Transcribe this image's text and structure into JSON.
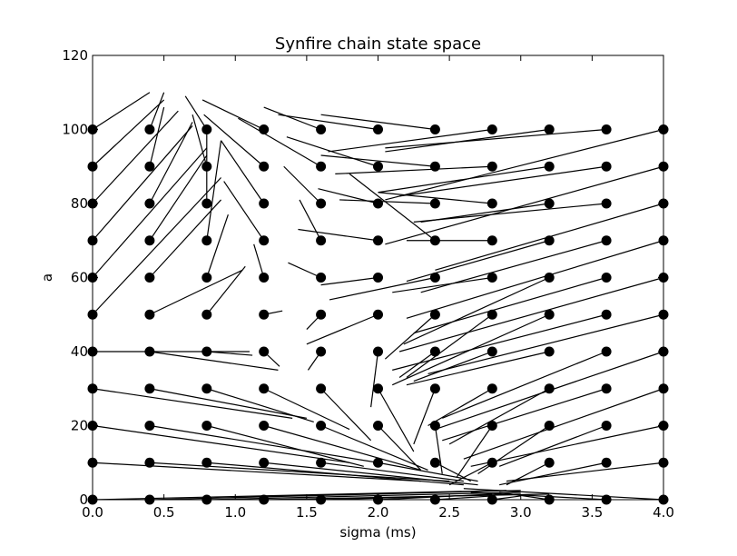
{
  "chart_data": {
    "type": "scatter",
    "title": "Synfire chain state space",
    "xlabel": "sigma (ms)",
    "ylabel": "a",
    "xlim": [
      0.0,
      4.0
    ],
    "ylim": [
      0,
      120
    ],
    "x_ticks": [
      "0.0",
      "0.5",
      "1.0",
      "1.5",
      "2.0",
      "2.5",
      "3.0",
      "3.5",
      "4.0"
    ],
    "y_ticks": [
      "0",
      "20",
      "40",
      "60",
      "80",
      "100",
      "120"
    ],
    "grid": false,
    "marker_color": "#000000",
    "line_color": "#000000",
    "grid_points": {
      "sigma": [
        0.0,
        0.4,
        0.8,
        1.2,
        1.6,
        2.0,
        2.4,
        2.8,
        3.2,
        3.6,
        4.0
      ],
      "a": [
        0,
        10,
        20,
        30,
        40,
        50,
        60,
        70,
        80,
        90,
        100
      ]
    },
    "segments": [
      [
        0.0,
        100,
        0.4,
        110
      ],
      [
        0.0,
        90,
        0.5,
        108
      ],
      [
        0.0,
        80,
        0.6,
        105
      ],
      [
        0.0,
        70,
        0.7,
        101
      ],
      [
        0.0,
        60,
        0.8,
        95
      ],
      [
        0.0,
        50,
        0.9,
        87
      ],
      [
        0.0,
        40,
        1.1,
        40
      ],
      [
        0.0,
        30,
        1.4,
        22
      ],
      [
        0.0,
        20,
        1.8,
        10
      ],
      [
        0.0,
        10,
        2.3,
        5
      ],
      [
        0.0,
        0,
        2.9,
        2.5
      ],
      [
        0.4,
        100,
        0.5,
        110
      ],
      [
        0.4,
        90,
        0.5,
        106
      ],
      [
        0.4,
        80,
        0.7,
        102
      ],
      [
        0.4,
        70,
        0.8,
        93
      ],
      [
        0.4,
        60,
        0.9,
        81
      ],
      [
        0.4,
        50,
        1.05,
        62
      ],
      [
        0.4,
        40,
        1.3,
        35
      ],
      [
        0.4,
        30,
        1.5,
        22
      ],
      [
        0.4,
        20,
        2.0,
        10
      ],
      [
        0.4,
        10,
        2.5,
        5
      ],
      [
        0.4,
        0,
        3.0,
        2.5
      ],
      [
        0.8,
        100,
        0.65,
        109
      ],
      [
        0.8,
        90,
        0.7,
        104
      ],
      [
        0.8,
        80,
        0.8,
        100
      ],
      [
        0.8,
        70,
        0.9,
        97
      ],
      [
        0.8,
        60,
        0.95,
        77
      ],
      [
        0.8,
        50,
        1.07,
        63
      ],
      [
        0.8,
        40,
        1.12,
        39
      ],
      [
        0.8,
        30,
        1.55,
        21
      ],
      [
        0.8,
        20,
        1.9,
        9
      ],
      [
        0.8,
        10,
        2.6,
        4
      ],
      [
        0.8,
        0,
        3.0,
        2
      ],
      [
        1.2,
        100,
        0.77,
        108
      ],
      [
        1.2,
        90,
        0.78,
        104
      ],
      [
        1.2,
        80,
        0.9,
        97
      ],
      [
        1.2,
        70,
        0.92,
        86
      ],
      [
        1.2,
        60,
        1.13,
        69
      ],
      [
        1.2,
        50,
        1.33,
        51
      ],
      [
        1.2,
        40,
        1.31,
        36
      ],
      [
        1.2,
        30,
        1.8,
        19
      ],
      [
        1.2,
        20,
        2.3,
        8
      ],
      [
        1.2,
        10,
        2.7,
        4
      ],
      [
        1.2,
        0,
        3.2,
        1.5
      ],
      [
        1.6,
        100,
        1.2,
        106
      ],
      [
        1.6,
        90,
        1.02,
        103
      ],
      [
        1.6,
        80,
        1.34,
        90
      ],
      [
        1.6,
        70,
        1.45,
        81
      ],
      [
        1.6,
        60,
        1.37,
        64
      ],
      [
        1.6,
        50,
        1.5,
        46
      ],
      [
        1.6,
        40,
        1.51,
        35
      ],
      [
        1.6,
        30,
        1.95,
        16
      ],
      [
        1.6,
        20,
        2.35,
        8
      ],
      [
        1.6,
        10,
        2.6,
        5
      ],
      [
        1.6,
        0,
        3.0,
        1.5
      ],
      [
        2.0,
        100,
        1.3,
        104
      ],
      [
        2.0,
        90,
        1.36,
        98
      ],
      [
        2.0,
        80,
        1.58,
        84
      ],
      [
        2.0,
        70,
        1.44,
        73
      ],
      [
        2.0,
        60,
        1.6,
        58
      ],
      [
        2.0,
        50,
        1.5,
        42
      ],
      [
        2.0,
        40,
        1.95,
        25
      ],
      [
        2.0,
        30,
        2.25,
        13
      ],
      [
        2.0,
        20,
        2.3,
        8
      ],
      [
        2.0,
        10,
        2.7,
        5
      ],
      [
        2.0,
        0,
        2.8,
        1.5
      ],
      [
        2.4,
        100,
        1.6,
        104
      ],
      [
        2.4,
        90,
        1.6,
        93
      ],
      [
        2.4,
        80,
        1.73,
        81
      ],
      [
        2.4,
        70,
        1.8,
        88
      ],
      [
        2.4,
        60,
        1.66,
        54
      ],
      [
        2.4,
        50,
        2.05,
        38
      ],
      [
        2.4,
        40,
        2.15,
        33
      ],
      [
        2.4,
        30,
        2.25,
        15
      ],
      [
        2.4,
        20,
        2.45,
        7
      ],
      [
        2.4,
        10,
        2.65,
        5
      ],
      [
        2.4,
        0,
        2.8,
        1
      ],
      [
        2.8,
        100,
        1.65,
        94
      ],
      [
        2.8,
        90,
        1.7,
        88
      ],
      [
        2.8,
        80,
        2.0,
        83
      ],
      [
        2.8,
        70,
        2.2,
        70
      ],
      [
        2.8,
        60,
        2.1,
        56
      ],
      [
        2.8,
        50,
        2.2,
        33
      ],
      [
        2.8,
        40,
        2.25,
        32
      ],
      [
        2.8,
        30,
        2.35,
        20
      ],
      [
        2.8,
        20,
        2.55,
        6
      ],
      [
        2.8,
        10,
        2.5,
        4
      ],
      [
        2.8,
        0,
        3.0,
        1
      ],
      [
        3.2,
        100,
        2.05,
        94
      ],
      [
        3.2,
        90,
        2.0,
        83
      ],
      [
        3.2,
        80,
        2.3,
        75
      ],
      [
        3.2,
        70,
        2.2,
        59
      ],
      [
        3.2,
        60,
        2.18,
        42
      ],
      [
        3.2,
        50,
        2.1,
        31
      ],
      [
        3.2,
        40,
        2.2,
        31
      ],
      [
        3.2,
        30,
        2.5,
        15
      ],
      [
        3.2,
        20,
        2.7,
        7
      ],
      [
        3.2,
        10,
        2.9,
        4
      ],
      [
        3.2,
        0,
        2.85,
        2
      ],
      [
        3.6,
        100,
        2.05,
        95
      ],
      [
        3.6,
        90,
        2.15,
        82
      ],
      [
        3.6,
        80,
        2.25,
        75
      ],
      [
        3.6,
        70,
        2.3,
        56
      ],
      [
        3.6,
        60,
        2.25,
        45
      ],
      [
        3.6,
        50,
        2.1,
        35
      ],
      [
        3.6,
        40,
        2.45,
        22
      ],
      [
        3.6,
        30,
        2.45,
        16
      ],
      [
        3.6,
        20,
        2.85,
        9
      ],
      [
        3.6,
        10,
        2.85,
        4
      ],
      [
        3.6,
        0,
        2.65,
        2
      ],
      [
        4.0,
        100,
        2.05,
        81
      ],
      [
        4.0,
        90,
        2.05,
        69
      ],
      [
        4.0,
        80,
        2.4,
        62
      ],
      [
        4.0,
        70,
        2.2,
        49
      ],
      [
        4.0,
        60,
        2.15,
        40
      ],
      [
        4.0,
        50,
        2.35,
        34
      ],
      [
        4.0,
        40,
        2.4,
        19
      ],
      [
        4.0,
        30,
        2.6,
        11
      ],
      [
        4.0,
        20,
        2.65,
        9
      ],
      [
        4.0,
        10,
        2.9,
        5
      ],
      [
        4.0,
        0,
        2.6,
        3
      ]
    ]
  }
}
